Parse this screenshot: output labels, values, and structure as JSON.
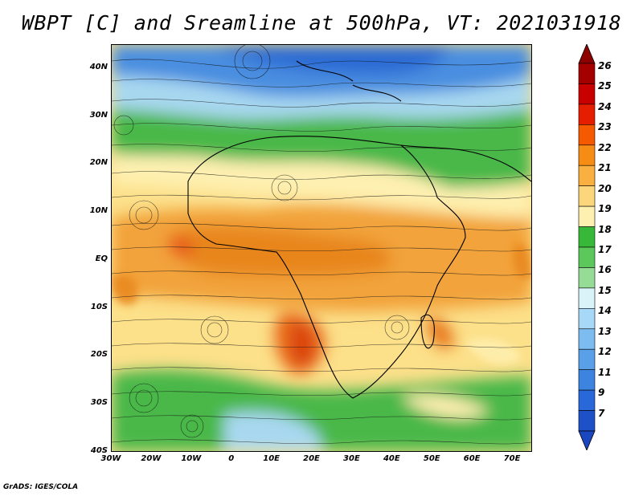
{
  "title": "WBPT [C] and Sreamline at 500hPa, VT: 2021031918",
  "credit": "GrADS: IGES/COLA",
  "map": {
    "lon_range": [
      -30,
      75
    ],
    "lat_range": [
      -40,
      45
    ],
    "lat_ticks": [
      {
        "value": 40,
        "label": "40N"
      },
      {
        "value": 30,
        "label": "30N"
      },
      {
        "value": 20,
        "label": "20N"
      },
      {
        "value": 10,
        "label": "10N"
      },
      {
        "value": 0,
        "label": "EQ"
      },
      {
        "value": -10,
        "label": "10S"
      },
      {
        "value": -20,
        "label": "20S"
      },
      {
        "value": -30,
        "label": "30S"
      },
      {
        "value": -40,
        "label": "40S"
      }
    ],
    "lon_ticks": [
      {
        "value": -30,
        "label": "30W"
      },
      {
        "value": -20,
        "label": "20W"
      },
      {
        "value": -10,
        "label": "10W"
      },
      {
        "value": 0,
        "label": "0"
      },
      {
        "value": 10,
        "label": "10E"
      },
      {
        "value": 20,
        "label": "20E"
      },
      {
        "value": 30,
        "label": "30E"
      },
      {
        "value": 40,
        "label": "40E"
      },
      {
        "value": 50,
        "label": "50E"
      },
      {
        "value": 60,
        "label": "60E"
      },
      {
        "value": 70,
        "label": "70E"
      }
    ]
  },
  "colorbar": {
    "levels": [
      "26",
      "25",
      "24",
      "23",
      "22",
      "21",
      "20",
      "19",
      "18",
      "17",
      "16",
      "15",
      "14",
      "13",
      "12",
      "11",
      "9",
      "7"
    ],
    "colors": [
      "#a50000",
      "#c80000",
      "#e61e00",
      "#f55a00",
      "#f78c14",
      "#f9b040",
      "#fcd67a",
      "#fef0b0",
      "#38b838",
      "#5cc85c",
      "#96dc96",
      "#d8f4f8",
      "#a8d8f8",
      "#7cbcf0",
      "#5aa0e8",
      "#3c84e0",
      "#2868d8",
      "#1e50c8"
    ],
    "top_color": "#8c0000",
    "bottom_color": "#1a46c0"
  }
}
